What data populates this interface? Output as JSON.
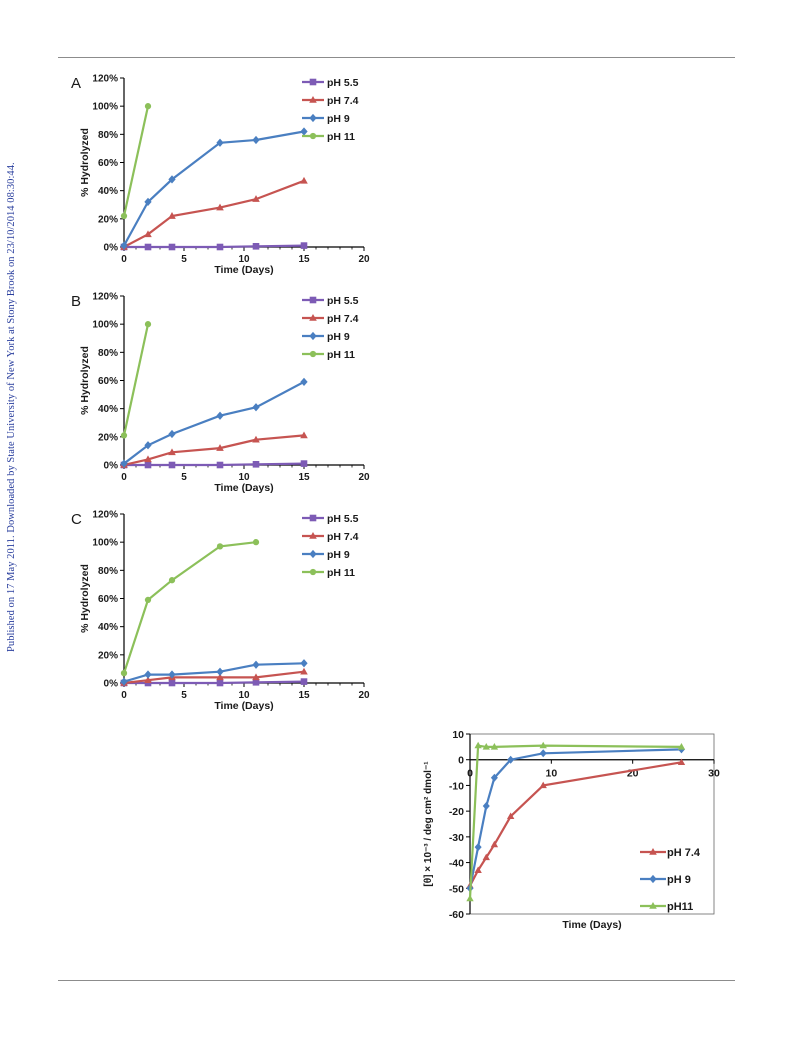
{
  "side_note": "Published on 17 May 2011. Downloaded by State University of New York at Stony Brook on 23/10/2014 08:30:44.",
  "colors": {
    "pH 5.5": "#7d5bb5",
    "pH 7.4": "#c65451",
    "pH 9": "#4a7fc1",
    "pH 11": "#8cc05a"
  },
  "chart_data": [
    {
      "panel_label": "A",
      "type": "line",
      "xlabel": "Time (Days)",
      "ylabel": "% Hydrolyzed",
      "xlim": [
        0,
        20
      ],
      "ylim": [
        0,
        120
      ],
      "xticks": [
        "0",
        "5",
        "10",
        "15",
        "20"
      ],
      "yticks": [
        "0%",
        "20%",
        "40%",
        "60%",
        "80%",
        "100%",
        "120%"
      ],
      "legend_position": "top-right",
      "series": [
        {
          "name": "pH 5.5",
          "marker": "square",
          "x": [
            0,
            2,
            4,
            8,
            11,
            15
          ],
          "y": [
            0,
            0,
            0,
            0,
            0.5,
            1
          ]
        },
        {
          "name": "pH 7.4",
          "marker": "triangle",
          "x": [
            0,
            2,
            4,
            8,
            11,
            15
          ],
          "y": [
            0,
            9,
            22,
            28,
            34,
            47
          ]
        },
        {
          "name": "pH 9",
          "marker": "diamond",
          "x": [
            0,
            2,
            4,
            8,
            11,
            15
          ],
          "y": [
            1,
            32,
            48,
            74,
            76,
            82
          ]
        },
        {
          "name": "pH 11",
          "marker": "circle",
          "x": [
            0,
            2
          ],
          "y": [
            22,
            100
          ]
        }
      ]
    },
    {
      "panel_label": "B",
      "type": "line",
      "xlabel": "Time (Days)",
      "ylabel": "% Hydrolyzed",
      "xlim": [
        0,
        20
      ],
      "ylim": [
        0,
        120
      ],
      "xticks": [
        "0",
        "5",
        "10",
        "15",
        "20"
      ],
      "yticks": [
        "0%",
        "20%",
        "40%",
        "60%",
        "80%",
        "100%",
        "120%"
      ],
      "legend_position": "top-right",
      "series": [
        {
          "name": "pH 5.5",
          "marker": "square",
          "x": [
            0,
            2,
            4,
            8,
            11,
            15
          ],
          "y": [
            0,
            0,
            0,
            0,
            0.5,
            1
          ]
        },
        {
          "name": "pH 7.4",
          "marker": "triangle",
          "x": [
            0,
            2,
            4,
            8,
            11,
            15
          ],
          "y": [
            0,
            4,
            9,
            12,
            18,
            21
          ]
        },
        {
          "name": "pH 9",
          "marker": "diamond",
          "x": [
            0,
            2,
            4,
            8,
            11,
            15
          ],
          "y": [
            1,
            14,
            22,
            35,
            41,
            59
          ]
        },
        {
          "name": "pH 11",
          "marker": "circle",
          "x": [
            0,
            2
          ],
          "y": [
            21,
            100
          ]
        }
      ]
    },
    {
      "panel_label": "C",
      "type": "line",
      "xlabel": "Time (Days)",
      "ylabel": "% Hydrolyzed",
      "xlim": [
        0,
        20
      ],
      "ylim": [
        0,
        120
      ],
      "xticks": [
        "0",
        "5",
        "10",
        "15",
        "20"
      ],
      "yticks": [
        "0%",
        "20%",
        "40%",
        "60%",
        "80%",
        "100%",
        "120%"
      ],
      "legend_position": "top-right",
      "series": [
        {
          "name": "pH 5.5",
          "marker": "square",
          "x": [
            0,
            2,
            4,
            8,
            11,
            15
          ],
          "y": [
            0,
            0,
            0,
            0,
            0.5,
            1
          ]
        },
        {
          "name": "pH 7.4",
          "marker": "triangle",
          "x": [
            0,
            2,
            4,
            8,
            11,
            15
          ],
          "y": [
            0,
            2,
            4,
            4,
            4,
            8
          ]
        },
        {
          "name": "pH 9",
          "marker": "diamond",
          "x": [
            0,
            2,
            4,
            8,
            11,
            15
          ],
          "y": [
            1,
            6,
            6,
            8,
            13,
            14
          ]
        },
        {
          "name": "pH 11",
          "marker": "circle",
          "x": [
            0,
            2,
            4,
            8,
            11
          ],
          "y": [
            7,
            59,
            73,
            97,
            100
          ]
        }
      ]
    },
    {
      "panel_label": "",
      "type": "line",
      "xlabel": "Time (Days)",
      "ylabel": "[θ] × 10⁻³ / deg cm² dmol⁻¹",
      "xlim": [
        0,
        30
      ],
      "ylim": [
        -60,
        10
      ],
      "xticks": [
        "0",
        "10",
        "20",
        "30"
      ],
      "yticks": [
        "-60",
        "-50",
        "-40",
        "-30",
        "-20",
        "-10",
        "0",
        "10"
      ],
      "legend_position": "bottom-right",
      "series": [
        {
          "name": "pH 7.4",
          "marker": "triangle",
          "x": [
            0,
            1,
            2,
            3,
            5,
            9,
            26
          ],
          "y": [
            -49,
            -43,
            -38,
            -33,
            -22,
            -10,
            -1
          ]
        },
        {
          "name": "pH 9",
          "marker": "diamond",
          "x": [
            0,
            1,
            2,
            3,
            5,
            9,
            26
          ],
          "y": [
            -50,
            -34,
            -18,
            -7,
            0,
            2.5,
            4
          ]
        },
        {
          "name": "pH11",
          "marker": "triangle",
          "x": [
            0,
            1,
            2,
            3,
            9,
            26
          ],
          "y": [
            -54,
            5.5,
            5,
            5,
            5.5,
            5
          ]
        }
      ]
    }
  ]
}
